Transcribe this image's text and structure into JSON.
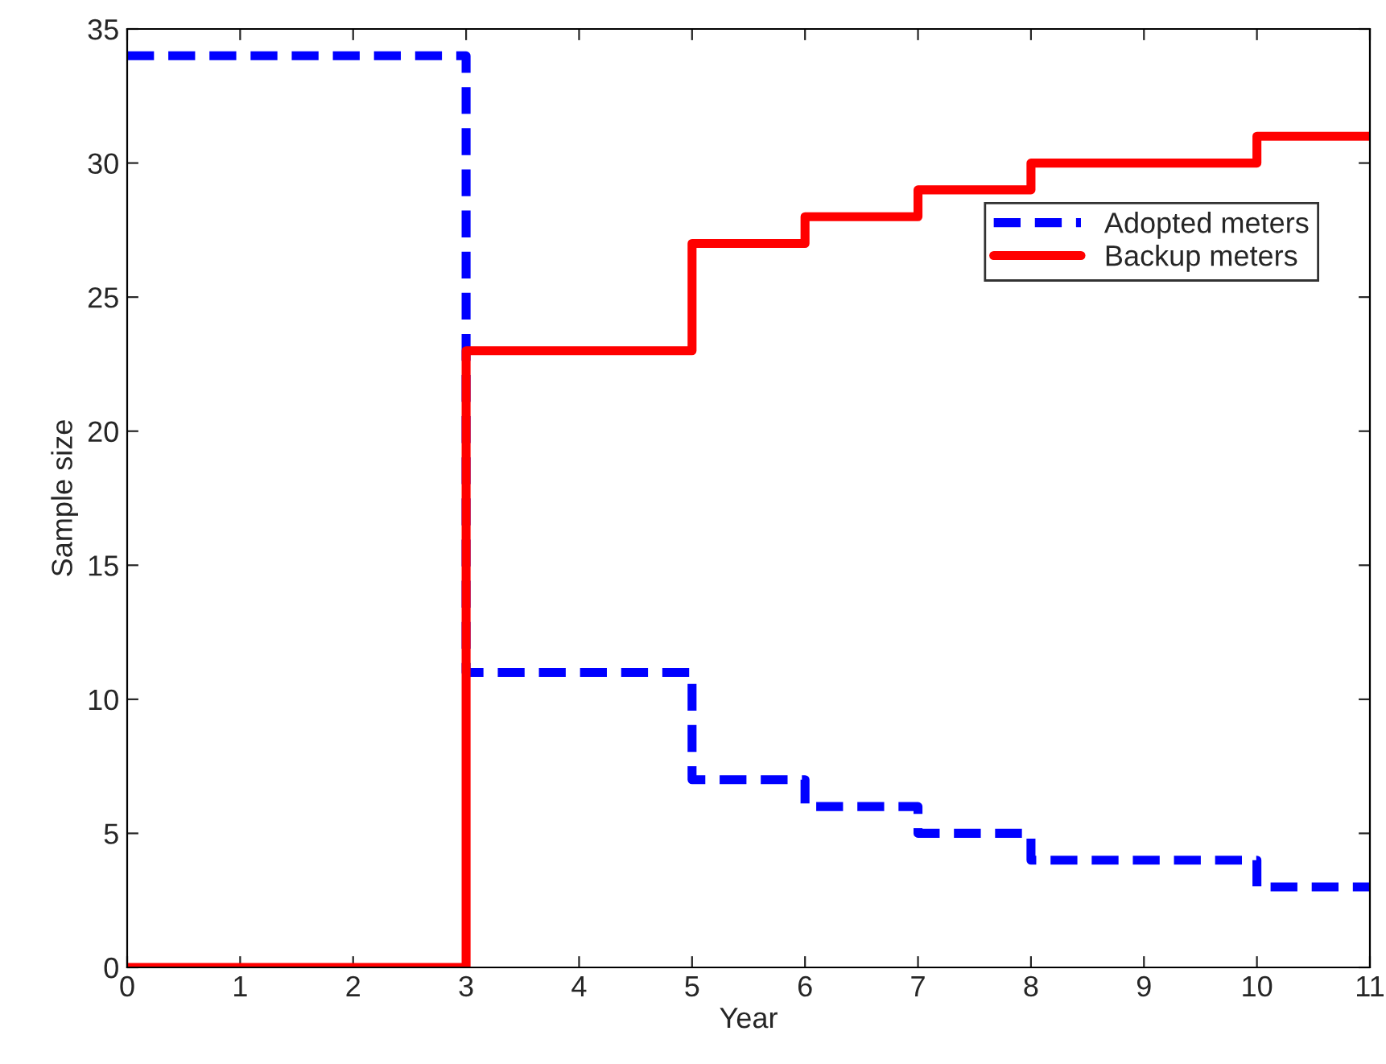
{
  "chart_data": {
    "type": "step",
    "xlabel": "Year",
    "ylabel": "Sample size",
    "x": [
      0,
      3,
      5,
      6,
      7,
      8,
      10,
      11
    ],
    "series": [
      {
        "name": "Adopted meters",
        "color": "#0000ff",
        "line_style": "dashed",
        "values": [
          34,
          11,
          7,
          6,
          5,
          4,
          3,
          3
        ]
      },
      {
        "name": "Backup meters",
        "color": "#ff0000",
        "line_style": "solid",
        "values": [
          0,
          23,
          27,
          28,
          29,
          30,
          31,
          31
        ]
      }
    ],
    "xlim": [
      0,
      11
    ],
    "xticks": [
      0,
      1,
      2,
      3,
      4,
      5,
      6,
      7,
      8,
      9,
      10,
      11
    ],
    "ylim": [
      0,
      35
    ],
    "yticks": [
      0,
      5,
      10,
      15,
      20,
      25,
      30,
      35
    ],
    "grid": false,
    "legend": "top right",
    "marker": "none"
  }
}
